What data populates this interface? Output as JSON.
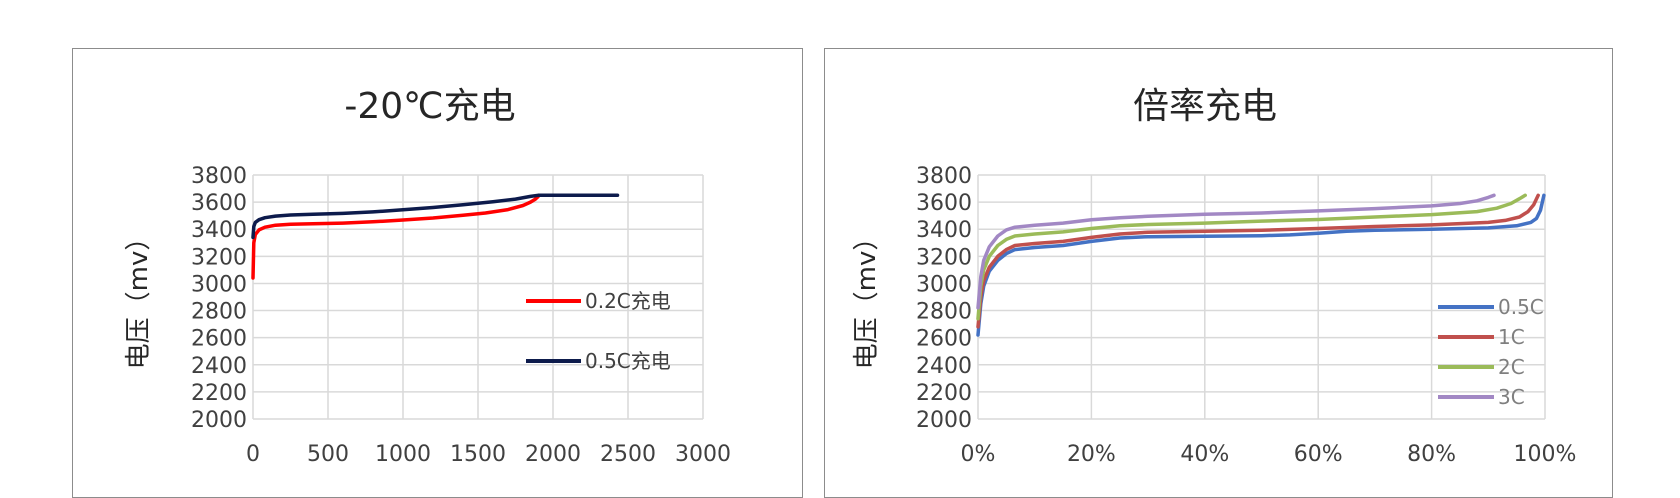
{
  "chart_data": [
    {
      "type": "line",
      "title": "-20℃充电",
      "ylabel": "电压（mv）",
      "xlabel": "",
      "xlim": [
        0,
        3000
      ],
      "ylim": [
        2000,
        3800
      ],
      "x_ticks": [
        "0",
        "500",
        "1000",
        "1500",
        "2000",
        "2500",
        "3000"
      ],
      "y_ticks": [
        "3800",
        "3600",
        "3400",
        "3200",
        "3000",
        "2800",
        "2600",
        "2400",
        "2200",
        "2000"
      ],
      "grid": true,
      "legend_position": "right",
      "series": [
        {
          "name": "0.2C充电",
          "color": "#ff0000",
          "x": [
            0,
            5,
            15,
            40,
            80,
            150,
            250,
            400,
            600,
            800,
            1000,
            1200,
            1400,
            1550,
            1700,
            1800,
            1850,
            1880,
            1900
          ],
          "y": [
            3040,
            3300,
            3360,
            3395,
            3415,
            3430,
            3437,
            3440,
            3445,
            3455,
            3468,
            3483,
            3503,
            3520,
            3545,
            3575,
            3600,
            3620,
            3640
          ]
        },
        {
          "name": "0.5C充电",
          "color": "#0d1b4c",
          "x": [
            0,
            5,
            15,
            40,
            80,
            150,
            250,
            400,
            600,
            800,
            1000,
            1200,
            1400,
            1600,
            1750,
            1850,
            1900,
            1950,
            2000,
            2200,
            2400,
            2430
          ],
          "y": [
            3340,
            3420,
            3450,
            3470,
            3485,
            3497,
            3505,
            3510,
            3517,
            3528,
            3543,
            3560,
            3580,
            3602,
            3622,
            3642,
            3650,
            3650,
            3650,
            3650,
            3650,
            3650
          ]
        }
      ]
    },
    {
      "type": "line",
      "title": "倍率充电",
      "ylabel": "电压（mv）",
      "xlabel": "",
      "xlim": [
        0,
        100
      ],
      "ylim": [
        2000,
        3800
      ],
      "x_ticks": [
        "0%",
        "20%",
        "40%",
        "60%",
        "80%",
        "100%"
      ],
      "y_ticks": [
        "3800",
        "3600",
        "3400",
        "3200",
        "3000",
        "2800",
        "2600",
        "2400",
        "2200",
        "2000"
      ],
      "grid": true,
      "legend_position": "right",
      "series": [
        {
          "name": "0.5C",
          "color": "#4472c4",
          "x": [
            0,
            0.5,
            1,
            2,
            3.5,
            5,
            6.5,
            10,
            15,
            20,
            25,
            30,
            40,
            50,
            55,
            60,
            65,
            70,
            80,
            90,
            95,
            97.5,
            98.5,
            99.2,
            99.8
          ],
          "y": [
            2620,
            2850,
            2980,
            3090,
            3170,
            3220,
            3250,
            3265,
            3280,
            3310,
            3335,
            3345,
            3348,
            3352,
            3358,
            3370,
            3385,
            3392,
            3400,
            3410,
            3425,
            3450,
            3480,
            3540,
            3650
          ]
        },
        {
          "name": "1C",
          "color": "#c0504d",
          "x": [
            0,
            0.5,
            1,
            2,
            3.5,
            5,
            6.5,
            10,
            15,
            20,
            25,
            30,
            40,
            50,
            60,
            70,
            80,
            90,
            93,
            95.5,
            97,
            98,
            98.8
          ],
          "y": [
            2680,
            2900,
            3020,
            3120,
            3200,
            3250,
            3280,
            3295,
            3310,
            3340,
            3365,
            3378,
            3385,
            3392,
            3405,
            3420,
            3432,
            3450,
            3465,
            3490,
            3530,
            3580,
            3650
          ]
        },
        {
          "name": "2C",
          "color": "#9bbb59",
          "x": [
            0,
            0.5,
            1,
            2,
            3.5,
            5,
            6.5,
            10,
            15,
            20,
            25,
            30,
            40,
            50,
            60,
            70,
            80,
            88,
            91.5,
            94,
            95.5,
            96.5
          ],
          "y": [
            2740,
            2980,
            3100,
            3200,
            3280,
            3325,
            3350,
            3365,
            3380,
            3405,
            3425,
            3435,
            3445,
            3460,
            3472,
            3490,
            3508,
            3530,
            3555,
            3590,
            3625,
            3650
          ]
        },
        {
          "name": "3C",
          "color": "#a288c4",
          "x": [
            0,
            0.5,
            1,
            2,
            3.5,
            5,
            6.5,
            10,
            15,
            20,
            25,
            30,
            40,
            50,
            60,
            70,
            80,
            85,
            88,
            90,
            91
          ],
          "y": [
            2820,
            3050,
            3170,
            3270,
            3350,
            3395,
            3415,
            3430,
            3445,
            3470,
            3485,
            3495,
            3510,
            3520,
            3535,
            3552,
            3572,
            3590,
            3610,
            3635,
            3650
          ]
        }
      ]
    }
  ]
}
